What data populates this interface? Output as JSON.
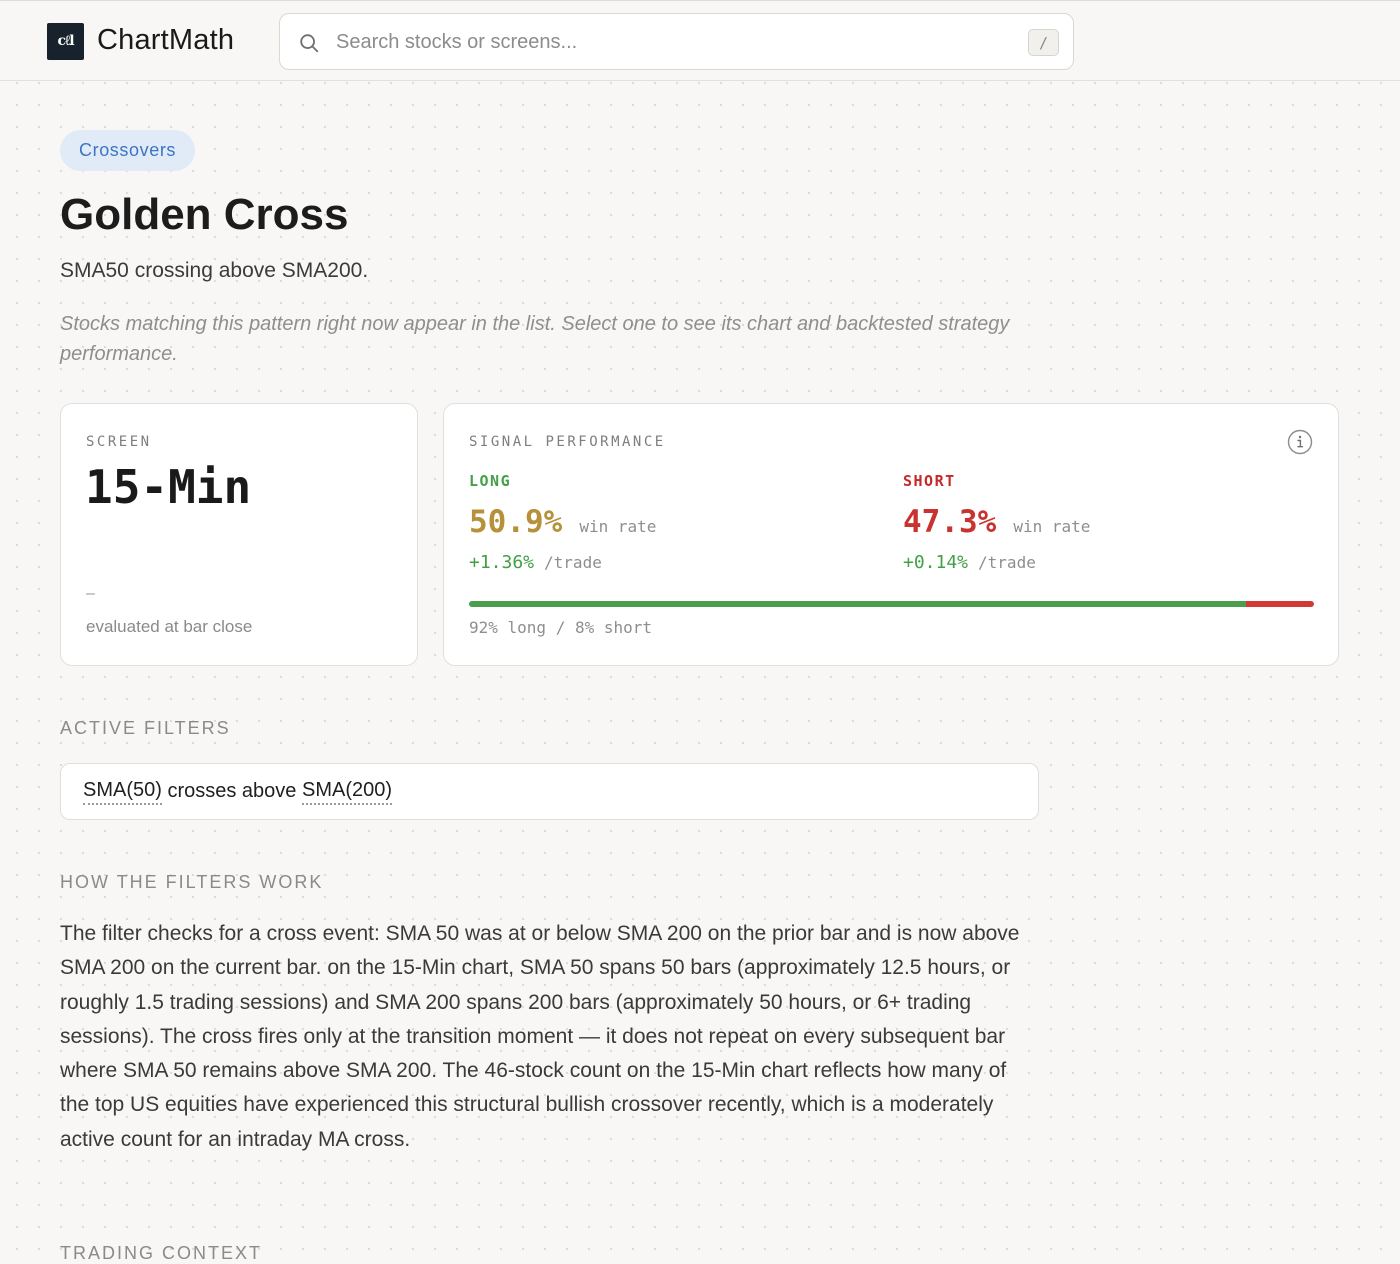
{
  "header": {
    "logo_text": "cℓl",
    "brand": "ChartMath",
    "search_placeholder": "Search stocks or screens...",
    "search_shortcut": "/"
  },
  "page": {
    "tag": "Crossovers",
    "title": "Golden Cross",
    "subtitle": "SMA50 crossing above SMA200.",
    "note": "Stocks matching this pattern right now appear in the list. Select one to see its chart and backtested strategy performance."
  },
  "screen_card": {
    "label": "SCREEN",
    "timeframe": "15-Min",
    "dash": "–",
    "footnote": "evaluated at bar close"
  },
  "performance": {
    "label": "SIGNAL PERFORMANCE",
    "long": {
      "name": "LONG",
      "win_rate": "50.9%",
      "win_rate_label": "win rate",
      "per_trade": "+1.36%",
      "per_trade_label": "/trade"
    },
    "short": {
      "name": "SHORT",
      "win_rate": "47.3%",
      "win_rate_label": "win rate",
      "per_trade": "+0.14%",
      "per_trade_label": "/trade"
    },
    "long_share": 0.92,
    "split_caption": "92% long / 8% short",
    "colors": {
      "long": "#43a047",
      "short": "#c62828",
      "long_rate": "#b7913a"
    }
  },
  "filters": {
    "heading": "ACTIVE FILTERS",
    "parts": [
      "SMA(50)",
      " crosses above ",
      "SMA(200)"
    ]
  },
  "how": {
    "heading": "HOW THE FILTERS WORK",
    "text": "The filter checks for a cross event: SMA 50 was at or below SMA 200 on the prior bar and is now above SMA 200 on the current bar. on the 15-Min chart, SMA 50 spans 50 bars (approximately 12.5 hours, or roughly 1.5 trading sessions) and SMA 200 spans 200 bars (approximately 50 hours, or 6+ trading sessions). The cross fires only at the transition moment — it does not repeat on every subsequent bar where SMA 50 remains above SMA 200. The 46-stock count on the 15-Min chart reflects how many of the top US equities have experienced this structural bullish crossover recently, which is a moderately active count for an intraday MA cross."
  },
  "context": {
    "heading": "TRADING CONTEXT"
  },
  "icons": {
    "search": "search-icon",
    "info": "info-icon",
    "logo": "logo-icon"
  }
}
